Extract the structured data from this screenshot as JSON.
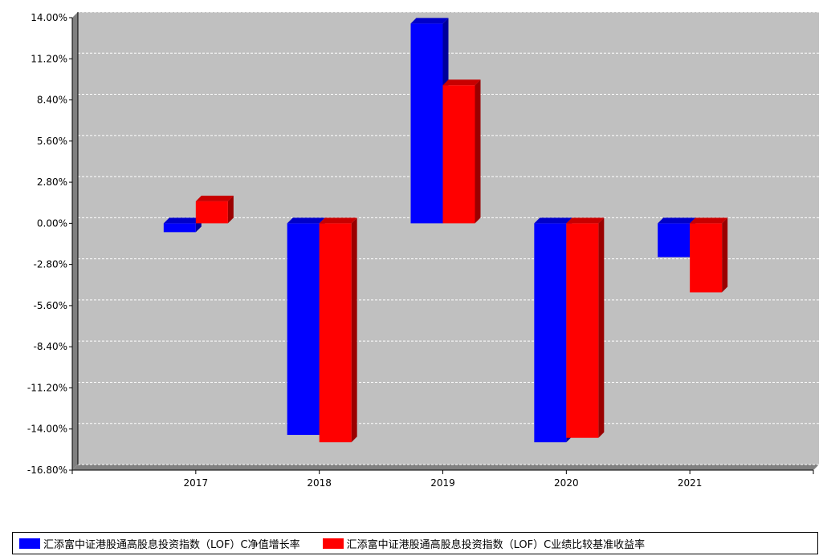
{
  "chart_data": {
    "type": "bar",
    "categories": [
      "2017",
      "2018",
      "2019",
      "2020",
      "2021"
    ],
    "series": [
      {
        "name": "汇添富中证港股通高股息投资指数（LOF）C净值增长率",
        "color": "#0000ff",
        "values": [
          -0.6,
          -14.4,
          13.6,
          -14.9,
          -2.3
        ]
      },
      {
        "name": "汇添富中证港股通高股息投资指数（LOF）C业绩比较基准收益率",
        "color": "#ff0000",
        "values": [
          1.5,
          -14.9,
          9.4,
          -14.6,
          -4.7
        ]
      }
    ],
    "yticks": [
      "14.00%",
      "11.20%",
      "8.40%",
      "5.60%",
      "2.80%",
      "0.00%",
      "-2.80%",
      "-5.60%",
      "-8.40%",
      "-11.20%",
      "-14.00%",
      "-16.80%"
    ],
    "ylim": [
      -16.8,
      14
    ],
    "grid": true,
    "legend": "bottom",
    "plot_background": "#c0c0c0",
    "wall_color": "#808080"
  }
}
